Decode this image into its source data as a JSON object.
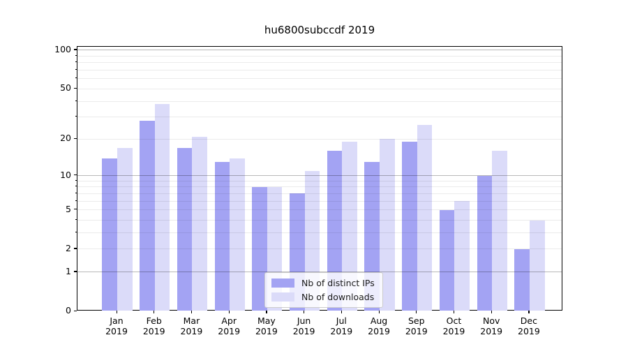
{
  "title": "hu6800subccdf 2019",
  "chart_data": {
    "type": "bar",
    "title": "hu6800subccdf 2019",
    "categories": [
      "Jan 2019",
      "Feb 2019",
      "Mar 2019",
      "Apr 2019",
      "May 2019",
      "Jun 2019",
      "Jul 2019",
      "Aug 2019",
      "Sep 2019",
      "Oct 2019",
      "Nov 2019",
      "Dec 2019"
    ],
    "month_labels": [
      "Jan",
      "Feb",
      "Mar",
      "Apr",
      "May",
      "Jun",
      "Jul",
      "Aug",
      "Sep",
      "Oct",
      "Nov",
      "Dec"
    ],
    "year_label": "2019",
    "series": [
      {
        "name": "Nb of distinct IPs",
        "color": "#a3a3f3",
        "values": [
          14,
          28,
          17,
          13,
          8,
          7,
          16,
          13,
          19,
          5,
          10,
          2
        ]
      },
      {
        "name": "Nb of downloads",
        "color": "#dbdbf9",
        "values": [
          17,
          38,
          21,
          14,
          8,
          11,
          19,
          20,
          26,
          6,
          16,
          4
        ]
      }
    ],
    "y_axis": {
      "scale": "log10(value+1)",
      "tick_labels": [
        0,
        1,
        2,
        5,
        10,
        20,
        50,
        100
      ],
      "max_value": 107,
      "grid_major": [
        1,
        10,
        100
      ],
      "grid_minor": [
        2,
        3,
        4,
        5,
        6,
        7,
        8,
        9,
        20,
        30,
        40,
        50,
        60,
        70,
        80,
        90
      ],
      "minor_tick_values": [
        3,
        4,
        6,
        7,
        8,
        9,
        30,
        40,
        60,
        70,
        80,
        90
      ]
    },
    "xlabel": "",
    "ylabel": "",
    "grid": true,
    "legend_position": "lower center"
  },
  "legend": {
    "entries": [
      {
        "label": "Nb of distinct IPs",
        "color": "#a3a3f3"
      },
      {
        "label": "Nb of downloads",
        "color": "#dbdbf9"
      }
    ]
  },
  "colors": {
    "background": "#ffffff",
    "bar_ips": "#a3a3f3",
    "bar_downloads": "#dbdbf9",
    "grid_major": "#b0b0b0",
    "grid_minor": "#e6e6e6",
    "spine": "#000000",
    "text": "#000000"
  }
}
